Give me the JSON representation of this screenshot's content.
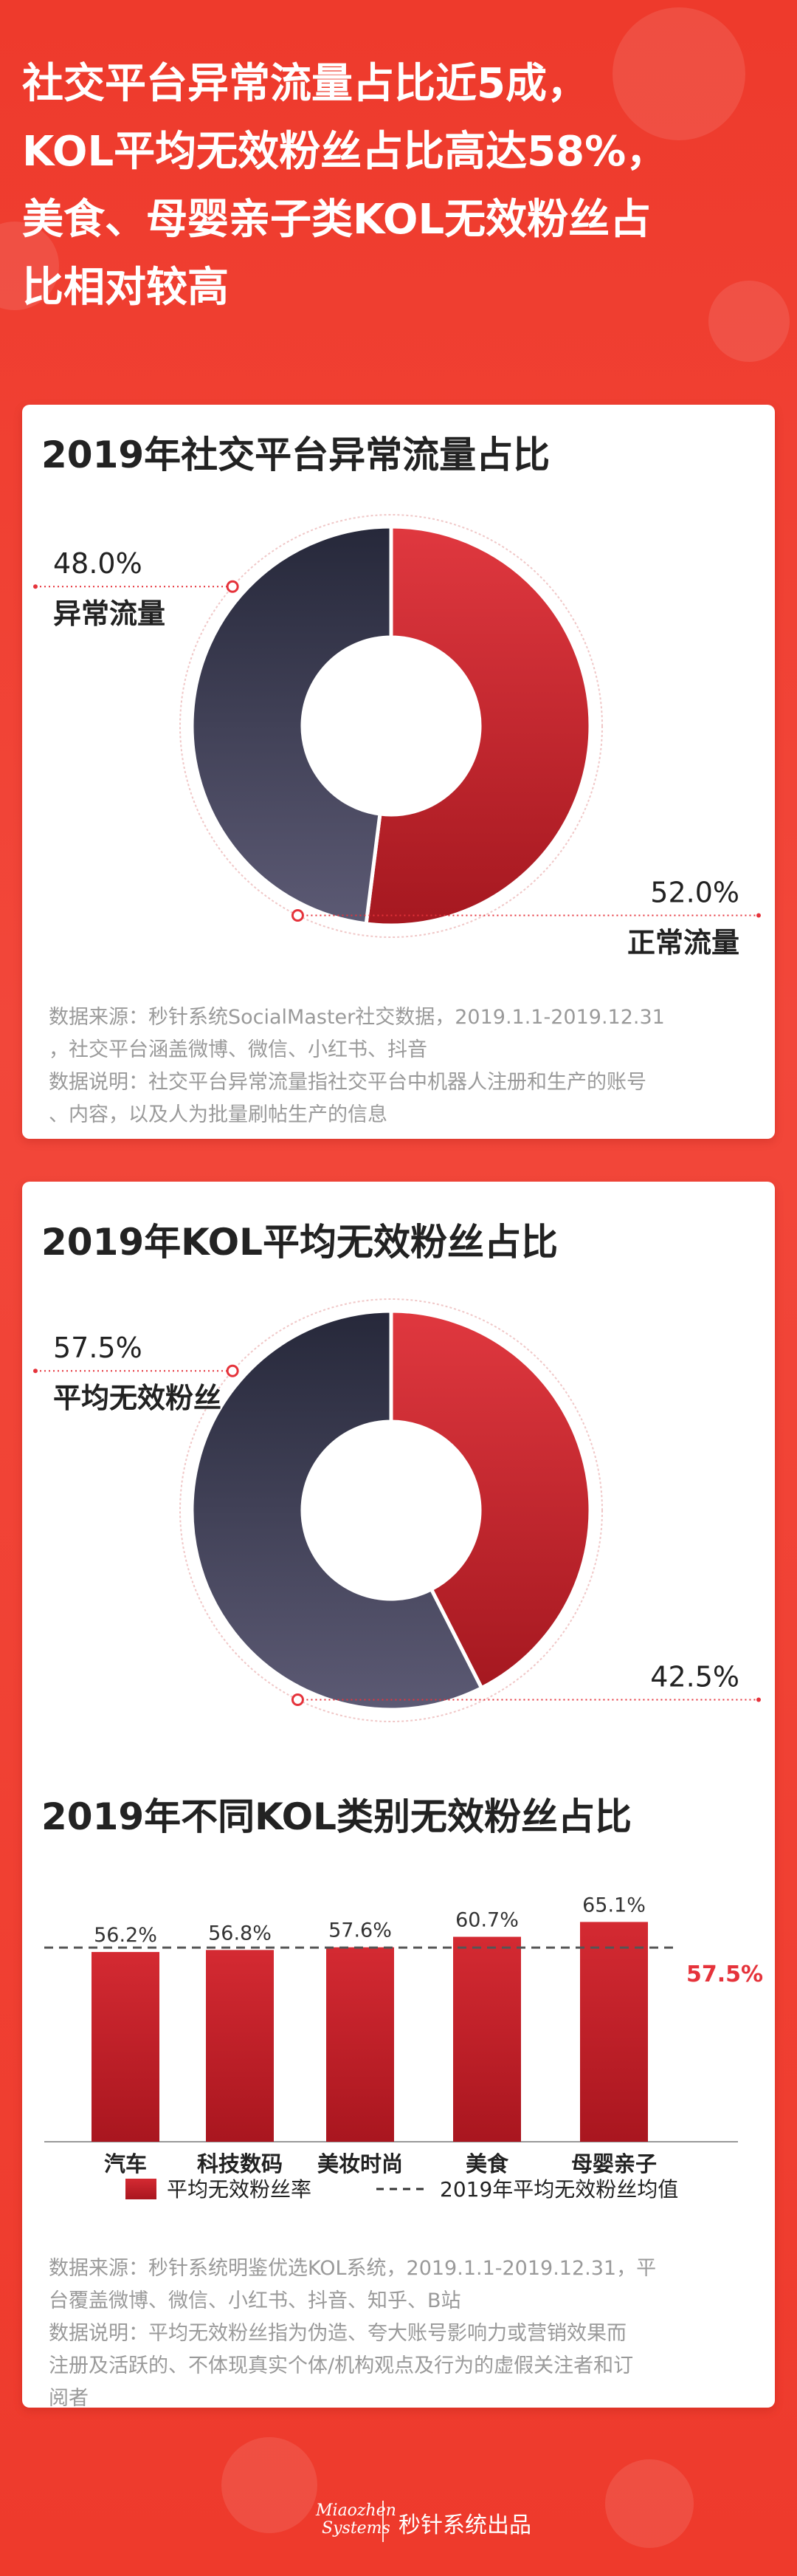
{
  "header": {
    "title_lines": [
      "社交平台异常流量占比近5成，",
      "KOL平均无效粉丝占比高达58%，",
      "美食、母婴亲子类KOL无效粉丝占",
      "比相对较高"
    ]
  },
  "colors": {
    "background": "#ee3a2c",
    "red": "#c8232b",
    "dark": "#3b3a52",
    "dashed": "#555555",
    "highlight": "#e5333b"
  },
  "card1": {
    "title": "2019年社交平台异常流量占比",
    "notes": [
      "数据来源：秒针系统SocialMaster社交数据，2019.1.1-2019.12.31",
      "，社交平台涵盖微博、微信、小红书、抖音",
      "数据说明：社交平台异常流量指社交平台中机器人注册和生产的账号",
      "、内容，以及人为批量刷帖生产的信息"
    ]
  },
  "card2": {
    "title": "2019年KOL平均无效粉丝占比",
    "bar_title": "2019年不同KOL类别无效粉丝占比",
    "notes": [
      "数据来源：秒针系统明鉴优选KOL系统，2019.1.1-2019.12.31，平",
      "台覆盖微博、微信、小红书、抖音、知乎、B站",
      "数据说明：平均无效粉丝指为伪造、夸大账号影响力或营销效果而",
      "注册及活跃的、不体现真实个体/机构观点及行为的虚假关注者和订",
      "阅者"
    ]
  },
  "footer": {
    "logo_lines": [
      "Miaozhen",
      "Systems"
    ],
    "text": "秒针系统出品"
  },
  "chart_data": [
    {
      "type": "pie",
      "title": "2019年社交平台异常流量占比",
      "slices": [
        {
          "label": "异常流量",
          "value": 48.0,
          "display": "48.0%",
          "color": "#3b3a52"
        },
        {
          "label": "正常流量",
          "value": 52.0,
          "display": "52.0%",
          "color": "#c8232b"
        }
      ]
    },
    {
      "type": "pie",
      "title": "2019年KOL平均无效粉丝占比",
      "slices": [
        {
          "label": "平均无效粉丝",
          "value": 57.5,
          "display": "57.5%",
          "color": "#3b3a52"
        },
        {
          "label": "",
          "value": 42.5,
          "display": "42.5%",
          "color": "#c8232b"
        }
      ]
    },
    {
      "type": "bar",
      "title": "2019年不同KOL类别无效粉丝占比",
      "categories": [
        "汽车",
        "科技数码",
        "美妆时尚",
        "美食",
        "母婴亲子"
      ],
      "values": [
        56.2,
        56.8,
        57.6,
        60.7,
        65.1
      ],
      "value_labels": [
        "56.2%",
        "56.8%",
        "57.6%",
        "60.7%",
        "65.1%"
      ],
      "baseline": {
        "value": 57.5,
        "label": "57.5%"
      },
      "legend": [
        {
          "type": "bar",
          "label": "平均无效粉丝率"
        },
        {
          "type": "dashed-line",
          "label": "2019年平均无效粉丝均值"
        }
      ],
      "legend_position": "bottom",
      "ylim": [
        0,
        70
      ]
    }
  ]
}
